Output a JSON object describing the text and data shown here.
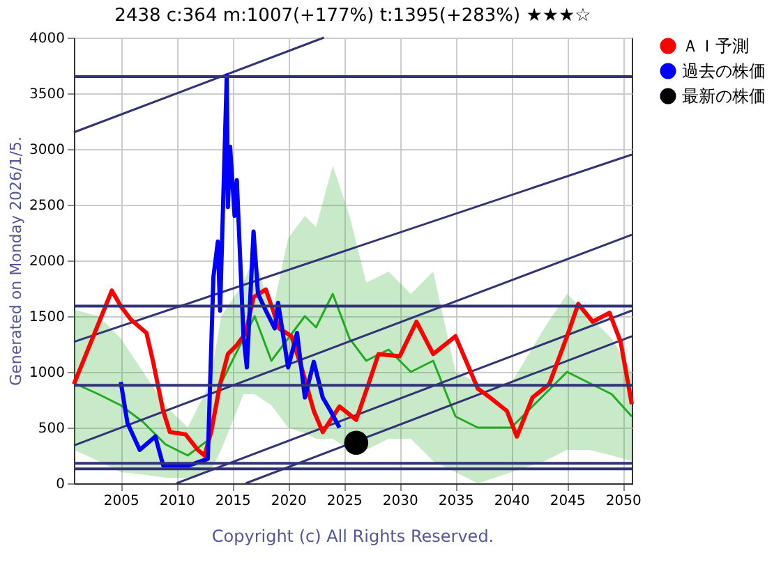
{
  "chart_data": {
    "type": "line",
    "title": "2438 c:364 m:1007(+177%) t:1395(+283%) ★★★☆",
    "ylabel": "Generated on Monday 2026/1/5.",
    "xlim": [
      2000.8,
      2050.8
    ],
    "xticks": [
      2005,
      2010,
      2015,
      2020,
      2025,
      2030,
      2035,
      2040,
      2045,
      2050
    ],
    "ylim": [
      0,
      4000
    ],
    "yticks": [
      0,
      500,
      1000,
      1500,
      2000,
      2500,
      3000,
      3500,
      4000
    ],
    "grid": true,
    "legend": "right",
    "series": [
      {
        "color": "#22aa22",
        "x": [
          2000.8,
          2003,
          2005,
          2007,
          2009,
          2011,
          2013,
          2014,
          2016,
          2017,
          2018.5,
          2020,
          2021.5,
          2022.5,
          2024,
          2025.5,
          2027,
          2029,
          2031,
          2033,
          2035,
          2037,
          2040,
          2043,
          2045,
          2047,
          2049,
          2050.8
        ],
        "values": [
          900,
          800,
          700,
          550,
          350,
          250,
          400,
          900,
          1300,
          1500,
          1100,
          1300,
          1500,
          1400,
          1700,
          1300,
          1100,
          1200,
          1000,
          1100,
          600,
          500,
          500,
          800,
          1000,
          900,
          800,
          600
        ],
        "lower": [
          300,
          200,
          100,
          80,
          50,
          50,
          100,
          300,
          800,
          800,
          700,
          500,
          450,
          400,
          400,
          300,
          300,
          400,
          400,
          200,
          100,
          0,
          100,
          200,
          300,
          300,
          250,
          200
        ],
        "upper": [
          1560,
          1500,
          1300,
          1000,
          700,
          500,
          900,
          1500,
          1800,
          2050,
          1500,
          2200,
          2400,
          2300,
          2850,
          2400,
          1800,
          1900,
          1700,
          1900,
          1000,
          900,
          900,
          1400,
          1700,
          1500,
          1300,
          1000
        ]
      },
      {
        "color": "#333377",
        "x": [
          2000.8,
          2023.2
        ],
        "values": [
          3150,
          4000
        ]
      },
      {
        "color": "#333377",
        "x": [
          2000.8,
          2050.8
        ],
        "values": [
          1270,
          2950
        ]
      },
      {
        "color": "#333377",
        "x": [
          2000.8,
          2050.8
        ],
        "values": [
          340,
          2230
        ]
      },
      {
        "color": "#333377",
        "x": [
          2010,
          2050.8
        ],
        "values": [
          0,
          1550
        ]
      },
      {
        "color": "#333377",
        "x": [
          2016.2,
          2050.8
        ],
        "values": [
          0,
          1320
        ]
      },
      {
        "name": "ＡＩ予測",
        "color": "#ff0000",
        "x": [
          2000.8,
          2004.2,
          2005,
          2005.9,
          2007.3,
          2007.9,
          2008.8,
          2009.4,
          2010.8,
          2011.9,
          2012.5,
          2013.1,
          2013.9,
          2014.6,
          2015.4,
          2016.2,
          2016.9,
          2018,
          2019.2,
          2020.3,
          2021.2,
          2022.3,
          2023.1,
          2024.6,
          2026.1,
          2027.3,
          2028.1,
          2030,
          2031.5,
          2033,
          2035,
          2037,
          2038.1,
          2039.6,
          2040.5,
          2041.9,
          2043.4,
          2045,
          2046,
          2047.3,
          2048.8,
          2049.8,
          2050.8
        ],
        "values": [
          890,
          1730,
          1590,
          1470,
          1350,
          1090,
          650,
          460,
          440,
          300,
          250,
          460,
          890,
          1160,
          1240,
          1350,
          1670,
          1740,
          1390,
          1320,
          1040,
          650,
          460,
          690,
          570,
          920,
          1160,
          1140,
          1450,
          1160,
          1320,
          850,
          770,
          650,
          420,
          770,
          890,
          1320,
          1610,
          1450,
          1530,
          1270,
          710
        ]
      },
      {
        "name": "過去の株価",
        "color": "#0000ff",
        "x": [
          2005,
          2005.6,
          2006.7,
          2008.1,
          2008.8,
          2011.1,
          2012.8,
          2013.3,
          2013.7,
          2013.9,
          2014.5,
          2014.6,
          2014.8,
          2015.2,
          2015.4,
          2016,
          2016.3,
          2016.9,
          2017.3,
          2018,
          2018.8,
          2019.1,
          2020,
          2020.8,
          2021.5,
          2022.3,
          2023.1,
          2023.8,
          2024.6
        ],
        "values": [
          910,
          540,
          300,
          420,
          160,
          160,
          220,
          1850,
          2170,
          1550,
          3660,
          2480,
          3020,
          2400,
          2720,
          1320,
          1040,
          2260,
          1700,
          1550,
          1390,
          1620,
          1040,
          1350,
          770,
          1090,
          770,
          650,
          500
        ]
      },
      {
        "type": "scatter",
        "name": "最新の株価",
        "color": "#000000",
        "marker": "circle",
        "x": [
          2026.1
        ],
        "values": [
          364
        ]
      }
    ],
    "ref_lines": [
      {
        "axis": "y",
        "value": 3650,
        "color": "#333377"
      },
      {
        "axis": "y",
        "value": 1590,
        "color": "#333377"
      },
      {
        "axis": "y",
        "value": 880,
        "color": "#333377"
      },
      {
        "axis": "y",
        "value": 180,
        "color": "#333377"
      },
      {
        "axis": "y",
        "value": 130,
        "color": "#333377"
      }
    ],
    "annotations": [
      "Copyright (c) All Rights Reserved."
    ]
  }
}
